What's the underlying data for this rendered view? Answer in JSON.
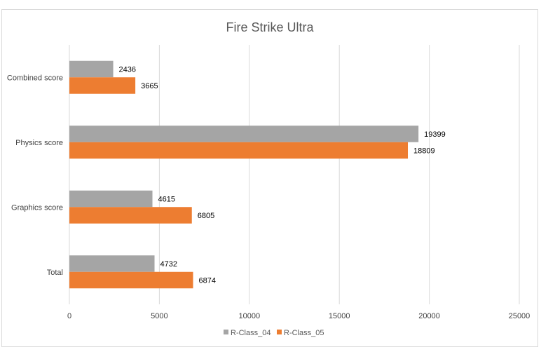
{
  "chart_data": {
    "type": "bar",
    "orientation": "horizontal",
    "title": "Fire Strike Ultra",
    "xlabel": "",
    "ylabel": "",
    "categories": [
      "Total",
      "Graphics score",
      "Physics score",
      "Combined score"
    ],
    "series": [
      {
        "name": "R-Class_04",
        "color": "#a5a5a5",
        "values": [
          4732,
          4615,
          19399,
          2436
        ]
      },
      {
        "name": "R-Class_05",
        "color": "#ed7d31",
        "values": [
          6874,
          6805,
          18809,
          3665
        ]
      }
    ],
    "xlim": [
      0,
      25000
    ],
    "xticks": [
      0,
      5000,
      10000,
      15000,
      20000,
      25000
    ],
    "grid": true,
    "legend_position": "bottom",
    "data_labels": true
  }
}
